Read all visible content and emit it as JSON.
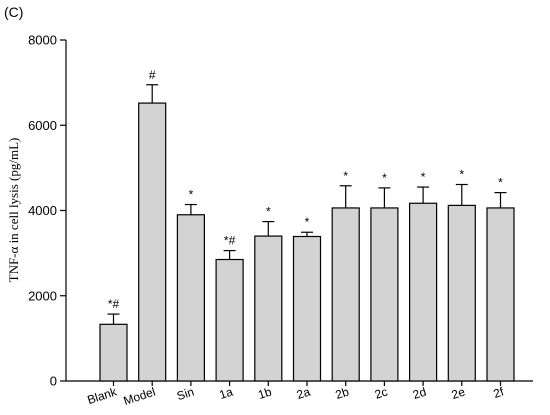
{
  "panel_label": "(C)",
  "chart_data": {
    "type": "bar",
    "ylabel": "TNF-α in cell lysis (pg/mL)",
    "ylim": [
      0,
      8000
    ],
    "yticks": [
      0,
      2000,
      4000,
      6000,
      8000
    ],
    "grid": false,
    "categories": [
      "Blank",
      "Model",
      "Sin",
      "1a",
      "1b",
      "2a",
      "2b",
      "2c",
      "2d",
      "2e",
      "2f"
    ],
    "values": [
      1330,
      6520,
      3900,
      2850,
      3400,
      3390,
      4060,
      4060,
      4170,
      4120,
      4060
    ],
    "errors": [
      240,
      430,
      240,
      210,
      340,
      100,
      520,
      470,
      380,
      490,
      360
    ],
    "annotations": [
      "*#",
      "#",
      "*",
      "*#",
      "*",
      "*",
      "*",
      "*",
      "*",
      "*",
      "*"
    ],
    "bar_color": "#d3d3d3"
  }
}
